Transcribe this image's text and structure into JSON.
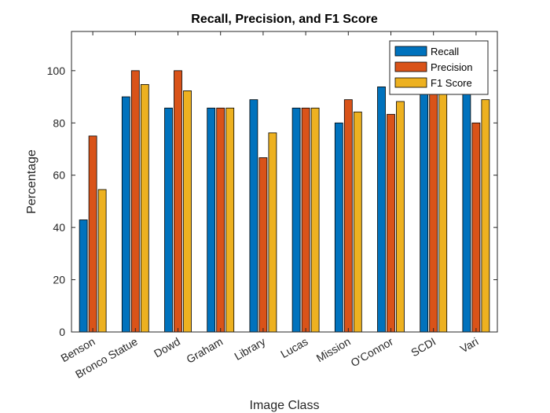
{
  "chart_data": {
    "type": "bar",
    "title": "Recall, Precision, and F1 Score",
    "xlabel": "Image Class",
    "ylabel": "Percentage",
    "ylim": [
      0,
      115
    ],
    "yticks": [
      0,
      20,
      40,
      60,
      80,
      100
    ],
    "grid": false,
    "legend_position": "top-right",
    "categories": [
      "Benson",
      "Bronco Statue",
      "Dowd",
      "Graham",
      "Library",
      "Lucas",
      "Mission",
      "O'Connor",
      "SCDI",
      "Vari"
    ],
    "series": [
      {
        "name": "Recall",
        "color": "#0072BD",
        "values": [
          42.9,
          90.0,
          85.7,
          85.7,
          88.9,
          85.7,
          80.0,
          93.8,
          100.0,
          100.0
        ]
      },
      {
        "name": "Precision",
        "color": "#D95319",
        "values": [
          75.0,
          100.0,
          100.0,
          85.7,
          66.7,
          85.7,
          88.9,
          83.3,
          91.7,
          80.0
        ]
      },
      {
        "name": "F1 Score",
        "color": "#EDB120",
        "values": [
          54.5,
          94.7,
          92.3,
          85.7,
          76.2,
          85.7,
          84.2,
          88.2,
          95.7,
          88.9
        ]
      }
    ]
  }
}
